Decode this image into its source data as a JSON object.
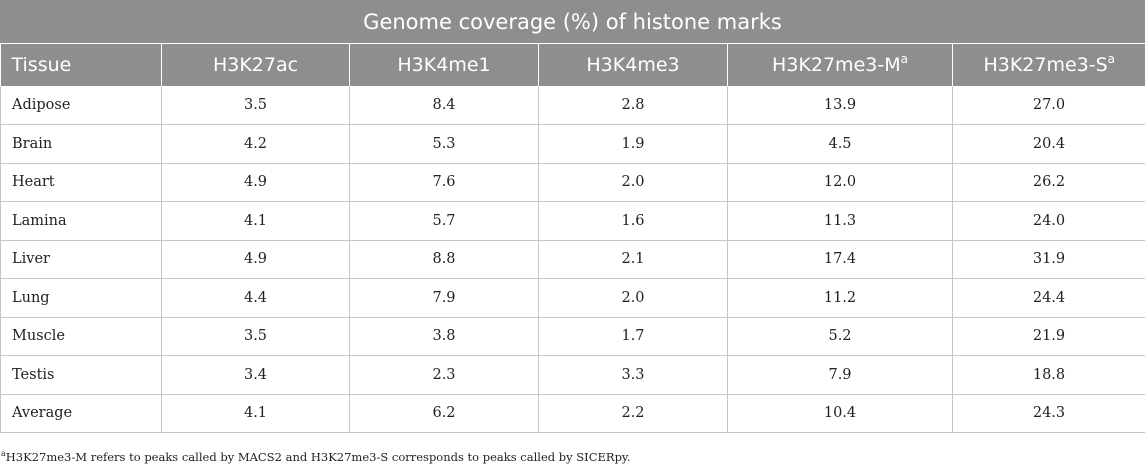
{
  "table": {
    "title": "Genome coverage (%) of histone marks",
    "headers": [
      {
        "label": "Tissue",
        "sup": ""
      },
      {
        "label": "H3K27ac",
        "sup": ""
      },
      {
        "label": "H3K4me1",
        "sup": ""
      },
      {
        "label": "H3K4me3",
        "sup": ""
      },
      {
        "label": "H3K27me3-M",
        "sup": "a"
      },
      {
        "label": "H3K27me3-S",
        "sup": "a"
      }
    ],
    "rows": [
      [
        "Adipose",
        "3.5",
        "8.4",
        "2.8",
        "13.9",
        "27.0"
      ],
      [
        "Brain",
        "4.2",
        "5.3",
        "1.9",
        "4.5",
        "20.4"
      ],
      [
        "Heart",
        "4.9",
        "7.6",
        "2.0",
        "12.0",
        "26.2"
      ],
      [
        "Lamina",
        "4.1",
        "5.7",
        "1.6",
        "11.3",
        "24.0"
      ],
      [
        "Liver",
        "4.9",
        "8.8",
        "2.1",
        "17.4",
        "31.9"
      ],
      [
        "Lung",
        "4.4",
        "7.9",
        "2.0",
        "11.2",
        "24.4"
      ],
      [
        "Muscle",
        "3.5",
        "3.8",
        "1.7",
        "5.2",
        "21.9"
      ],
      [
        "Testis",
        "3.4",
        "2.3",
        "3.3",
        "7.9",
        "18.8"
      ],
      [
        "Average",
        "4.1",
        "6.2",
        "2.2",
        "10.4",
        "24.3"
      ]
    ]
  },
  "footnote": {
    "marker": "a",
    "text": "H3K27me3-M refers to peaks called by MACS2 and H3K27me3-S corresponds to peaks called by SICERpy."
  },
  "colors": {
    "header_bg": "#8e8e8e",
    "header_text": "#ffffff",
    "grid": "#c6c6c6"
  }
}
